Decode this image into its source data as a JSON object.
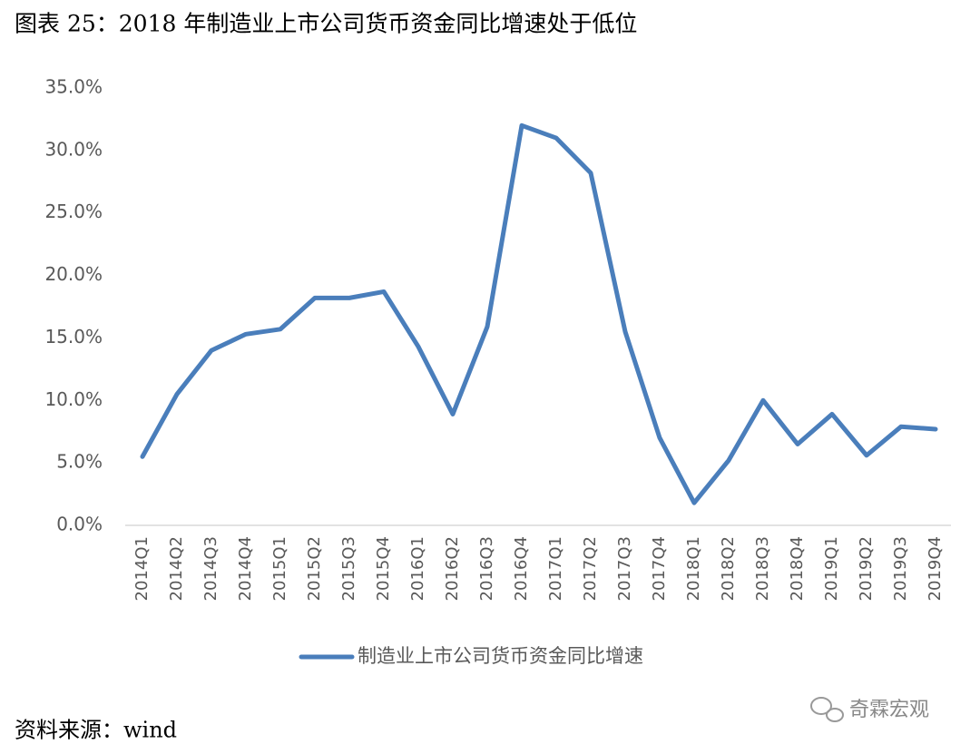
{
  "chart_data": {
    "type": "line",
    "title": "图表 25：2018 年制造业上市公司货币资金同比增速处于低位",
    "categories": [
      "2014Q1",
      "2014Q2",
      "2014Q3",
      "2014Q4",
      "2015Q1",
      "2015Q2",
      "2015Q3",
      "2015Q4",
      "2016Q1",
      "2016Q2",
      "2016Q3",
      "2016Q4",
      "2017Q1",
      "2017Q2",
      "2017Q3",
      "2017Q4",
      "2018Q1",
      "2018Q2",
      "2018Q3",
      "2018Q4",
      "2019Q1",
      "2019Q2",
      "2019Q3",
      "2019Q4"
    ],
    "series": [
      {
        "name": "制造业上市公司货币资金同比增速",
        "color": "#4a7ebb",
        "values": [
          5.5,
          10.5,
          14.0,
          15.3,
          15.7,
          18.2,
          18.2,
          18.7,
          14.3,
          8.9,
          15.9,
          32.0,
          31.0,
          28.2,
          15.5,
          7.0,
          1.8,
          5.2,
          10.0,
          6.5,
          8.9,
          5.6,
          7.9,
          7.7
        ]
      }
    ],
    "ylim": [
      0,
      35
    ],
    "yticks": [
      {
        "value": 0,
        "label": "0.0%"
      },
      {
        "value": 5,
        "label": "5.0%"
      },
      {
        "value": 10,
        "label": "10.0%"
      },
      {
        "value": 15,
        "label": "15.0%"
      },
      {
        "value": 20,
        "label": "20.0%"
      },
      {
        "value": 25,
        "label": "25.0%"
      },
      {
        "value": 30,
        "label": "30.0%"
      },
      {
        "value": 35,
        "label": "35.0%"
      }
    ],
    "grid": false,
    "legend": "bottom",
    "source": "资料来源：wind",
    "watermark": "奇霖宏观"
  }
}
